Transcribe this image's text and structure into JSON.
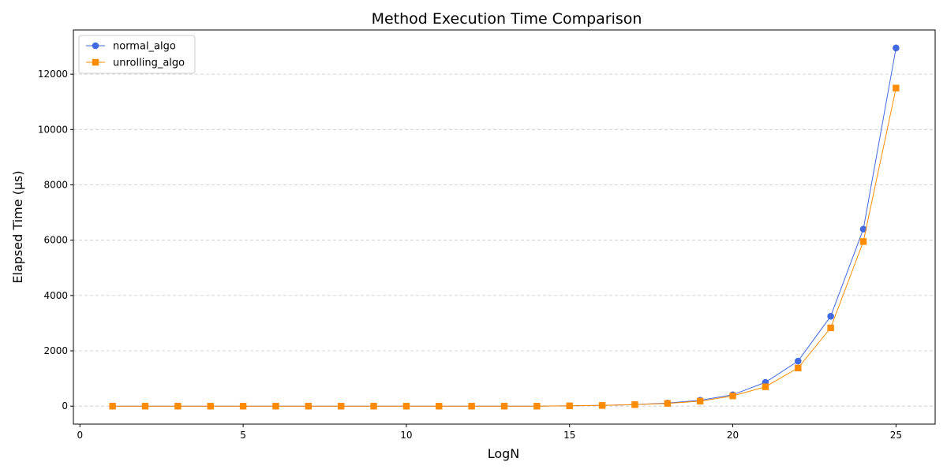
{
  "chart_data": {
    "type": "line",
    "title": "Method Execution Time Comparison",
    "xlabel": "LogN",
    "ylabel": "Elapsed Time (μs)",
    "xlim": [
      -0.2,
      26.2
    ],
    "ylim": [
      -650,
      13600
    ],
    "xticks": [
      0,
      5,
      10,
      15,
      20,
      25
    ],
    "yticks": [
      0,
      2000,
      4000,
      6000,
      8000,
      10000,
      12000
    ],
    "grid": "y-dashed",
    "legend_position": "top-left",
    "x": [
      1,
      2,
      3,
      4,
      5,
      6,
      7,
      8,
      9,
      10,
      11,
      12,
      13,
      14,
      15,
      16,
      17,
      18,
      19,
      20,
      21,
      22,
      23,
      24,
      25
    ],
    "series": [
      {
        "name": "normal_algo",
        "color": "#4169e1",
        "marker": "circle",
        "values": [
          0,
          0,
          0,
          0,
          0,
          0,
          0,
          0,
          0,
          0,
          0,
          0,
          0,
          0,
          10,
          25,
          55,
          110,
          210,
          410,
          860,
          1630,
          3250,
          6400,
          12950
        ]
      },
      {
        "name": "unrolling_algo",
        "color": "#ff8c00",
        "marker": "square",
        "values": [
          0,
          0,
          0,
          0,
          0,
          0,
          0,
          0,
          0,
          0,
          0,
          0,
          0,
          0,
          10,
          25,
          55,
          100,
          180,
          370,
          700,
          1380,
          2830,
          5950,
          11500
        ]
      }
    ]
  }
}
